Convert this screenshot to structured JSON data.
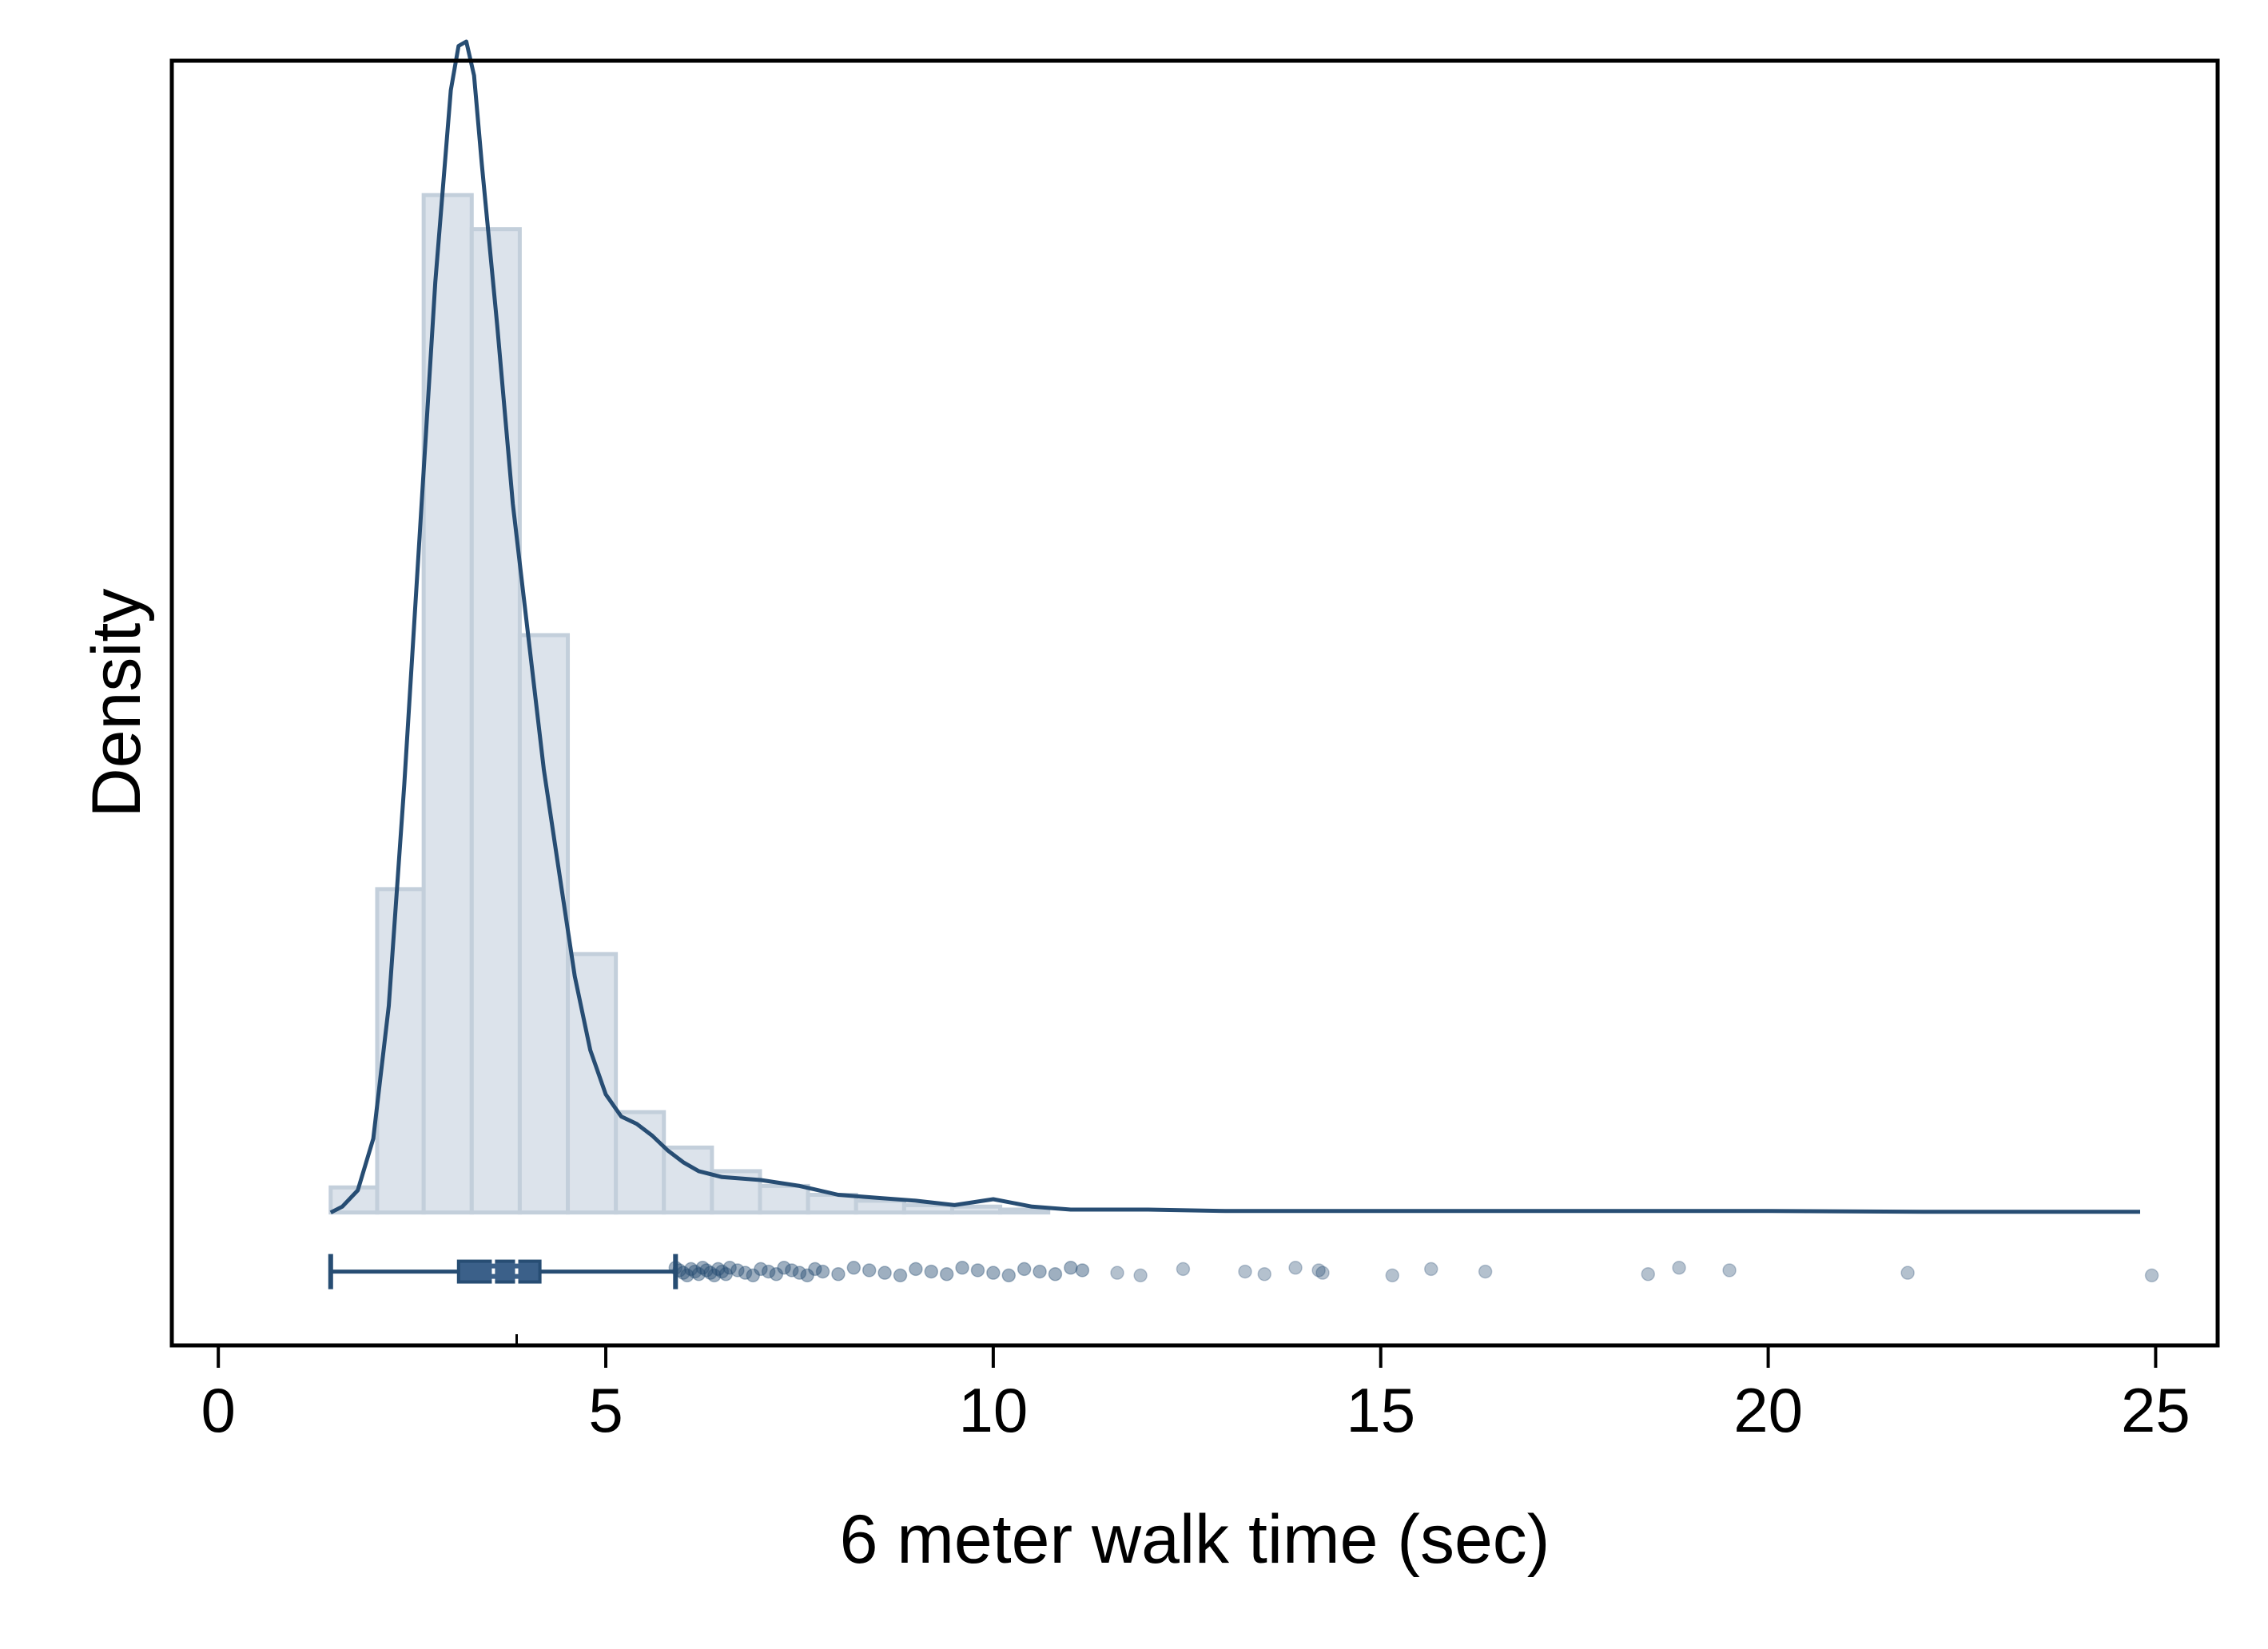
{
  "chart_data": {
    "type": "histogram",
    "xlabel": "6 meter walk time (sec)",
    "ylabel": "Density",
    "x_ticks": [
      0,
      5,
      10,
      15,
      20,
      25
    ],
    "xlim": [
      -0.6,
      25.8
    ],
    "ylim": [
      -0.09,
      0.78
    ],
    "y_ticks_shown": false,
    "grid": false,
    "legend": "none",
    "histogram": {
      "bin_width": 0.625,
      "bins": [
        {
          "x0": 1.45,
          "x1": 2.05,
          "density": 0.017
        },
        {
          "x0": 2.05,
          "x1": 2.65,
          "density": 0.219
        },
        {
          "x0": 2.65,
          "x1": 3.27,
          "density": 0.689
        },
        {
          "x0": 3.27,
          "x1": 3.89,
          "density": 0.666
        },
        {
          "x0": 3.89,
          "x1": 4.51,
          "density": 0.391
        },
        {
          "x0": 4.51,
          "x1": 5.13,
          "density": 0.175
        },
        {
          "x0": 5.13,
          "x1": 5.75,
          "density": 0.068
        },
        {
          "x0": 5.75,
          "x1": 6.37,
          "density": 0.044
        },
        {
          "x0": 6.37,
          "x1": 6.99,
          "density": 0.028
        },
        {
          "x0": 6.99,
          "x1": 7.61,
          "density": 0.018
        },
        {
          "x0": 7.61,
          "x1": 8.23,
          "density": 0.012
        },
        {
          "x0": 8.23,
          "x1": 8.85,
          "density": 0.008
        },
        {
          "x0": 8.85,
          "x1": 9.47,
          "density": 0.005
        },
        {
          "x0": 9.47,
          "x1": 10.09,
          "density": 0.004
        },
        {
          "x0": 10.09,
          "x1": 10.71,
          "density": 0.002
        }
      ]
    },
    "density_curve": {
      "x": [
        1.45,
        1.6,
        1.8,
        2.0,
        2.2,
        2.4,
        2.6,
        2.8,
        3.0,
        3.1,
        3.2,
        3.3,
        3.4,
        3.6,
        3.8,
        4.0,
        4.2,
        4.4,
        4.6,
        4.8,
        5.0,
        5.2,
        5.4,
        5.6,
        5.8,
        6.0,
        6.2,
        6.5,
        7.0,
        7.5,
        8.0,
        8.5,
        9.0,
        9.5,
        10.0,
        10.5,
        11.0,
        12.0,
        13.0,
        15.0,
        17.0,
        20.0,
        22.0,
        24.8
      ],
      "y": [
        0.0,
        0.004,
        0.015,
        0.05,
        0.14,
        0.29,
        0.46,
        0.63,
        0.76,
        0.79,
        0.793,
        0.77,
        0.71,
        0.6,
        0.48,
        0.39,
        0.3,
        0.23,
        0.16,
        0.11,
        0.08,
        0.065,
        0.06,
        0.052,
        0.042,
        0.034,
        0.028,
        0.024,
        0.022,
        0.018,
        0.012,
        0.01,
        0.008,
        0.005,
        0.009,
        0.004,
        0.002,
        0.002,
        0.001,
        0.001,
        0.001,
        0.001,
        0.0005,
        0.0005
      ]
    },
    "boxplot": {
      "whisker_low": 1.45,
      "q1": 3.1,
      "median": 3.55,
      "mean": 3.85,
      "q3": 4.15,
      "whisker_high": 5.9,
      "outliers": [
        5.9,
        5.95,
        6.0,
        6.05,
        6.1,
        6.15,
        6.2,
        6.25,
        6.3,
        6.35,
        6.4,
        6.45,
        6.5,
        6.55,
        6.6,
        6.7,
        6.8,
        6.9,
        7.0,
        7.1,
        7.2,
        7.3,
        7.4,
        7.5,
        7.6,
        7.7,
        7.8,
        8.0,
        8.2,
        8.4,
        8.6,
        8.8,
        9.0,
        9.2,
        9.4,
        9.6,
        9.8,
        10.0,
        10.2,
        10.4,
        10.6,
        10.8,
        11.0,
        11.15,
        11.6,
        11.9,
        12.45,
        13.25,
        13.5,
        13.9,
        14.2,
        14.25,
        15.15,
        15.65,
        16.35,
        18.45,
        18.85,
        19.5,
        21.8,
        24.95
      ]
    },
    "colors": {
      "bar_fill": "#dce3eb",
      "bar_stroke": "#c3cfdb",
      "line": "#274d73",
      "box_fill": "#3b6089",
      "outlier": "#274d73",
      "axis": "#000000"
    }
  }
}
